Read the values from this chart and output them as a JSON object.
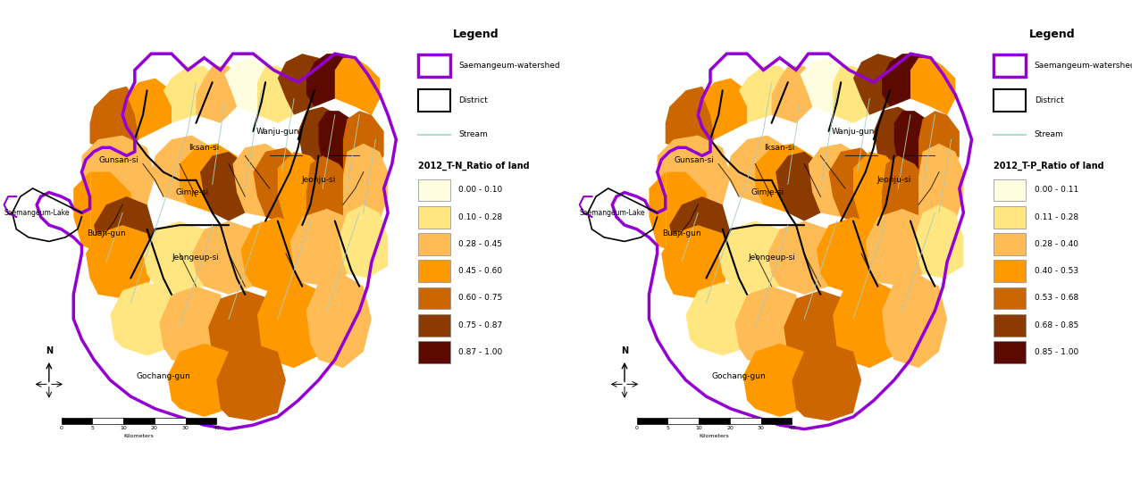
{
  "background_color": "#ffffff",
  "left_legend": {
    "title": "Legend",
    "watershed_label": "Saemangeum-watershed",
    "watershed_color": "#9400D3",
    "district_label": "District",
    "district_color": "#111111",
    "stream_label": "Stream",
    "stream_color": "#aaddcc",
    "data_title": "2012_T-N_Ratio of land",
    "classes": [
      {
        "label": "0.00 - 0.10",
        "color": "#FFFDE0"
      },
      {
        "label": "0.10 - 0.28",
        "color": "#FFE680"
      },
      {
        "label": "0.28 - 0.45",
        "color": "#FFBB55"
      },
      {
        "label": "0.45 - 0.60",
        "color": "#FF9900"
      },
      {
        "label": "0.60 - 0.75",
        "color": "#CC6600"
      },
      {
        "label": "0.75 - 0.87",
        "color": "#8B3A00"
      },
      {
        "label": "0.87 - 1.00",
        "color": "#5C0A00"
      }
    ]
  },
  "right_legend": {
    "title": "Legend",
    "watershed_label": "Saemangeum-watershed",
    "watershed_color": "#9400D3",
    "district_label": "District",
    "district_color": "#111111",
    "stream_label": "Stream",
    "stream_color": "#aaddcc",
    "data_title": "2012_T-P_Ratio of land",
    "classes": [
      {
        "label": "0.00 - 0.11",
        "color": "#FFFDE0"
      },
      {
        "label": "0.11 - 0.28",
        "color": "#FFE680"
      },
      {
        "label": "0.28 - 0.40",
        "color": "#FFBB55"
      },
      {
        "label": "0.40 - 0.53",
        "color": "#FF9900"
      },
      {
        "label": "0.53 - 0.68",
        "color": "#CC6600"
      },
      {
        "label": "0.68 - 0.85",
        "color": "#8B3A00"
      },
      {
        "label": "0.85 - 1.00",
        "color": "#5C0A00"
      }
    ]
  }
}
